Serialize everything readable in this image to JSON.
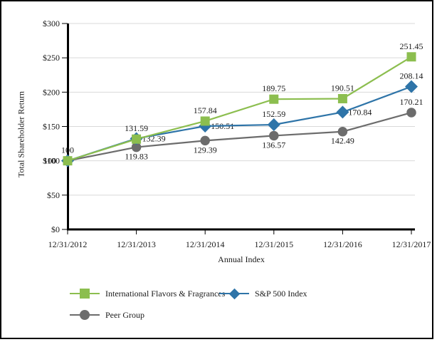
{
  "frame": {
    "background": "#ffffff",
    "border_color": "#000000"
  },
  "chart_data": {
    "type": "line",
    "title": "",
    "xlabel": "Annual Index",
    "ylabel": "Total Shareholder Return",
    "categories": [
      "12/31/2012",
      "12/31/2013",
      "12/31/2014",
      "12/31/2015",
      "12/31/2016",
      "12/31/2017"
    ],
    "ylim": [
      0,
      300
    ],
    "y_ticks": {
      "values": [
        0,
        50,
        100,
        150,
        200,
        250,
        300
      ],
      "labels": [
        "$0",
        "$50",
        "$100",
        "$150",
        "$200",
        "$250",
        "$300"
      ]
    },
    "grid": "horizontal",
    "grid_color": "#D9D9D9",
    "axis_color": "#000000",
    "text_color": "#1a1a1a",
    "legend_position": "bottom",
    "series": [
      {
        "name": "International Flavors & Fragrances",
        "marker": "square",
        "color": "#8CBE4F",
        "values": [
          100,
          131.59,
          157.84,
          189.75,
          190.51,
          251.45
        ],
        "labels": [
          "100",
          "131.59",
          "157.84",
          "189.75",
          "190.51",
          "251.45"
        ],
        "label_pos": [
          "above",
          "above",
          "above",
          "above",
          "above",
          "above"
        ]
      },
      {
        "name": "S&P 500 Index",
        "marker": "diamond",
        "color": "#2E74A8",
        "values": [
          100,
          132.39,
          150.51,
          152.59,
          170.84,
          208.14
        ],
        "labels": [
          "100",
          "132.39",
          "150.51",
          "152.59",
          "170.84",
          "208.14"
        ],
        "label_pos": [
          "left",
          "right",
          "right",
          "above",
          "right",
          "above"
        ]
      },
      {
        "name": "Peer Group",
        "marker": "circle",
        "color": "#6C6C6C",
        "values": [
          100,
          119.83,
          129.39,
          136.57,
          142.49,
          170.21
        ],
        "labels": [
          "100",
          "119.83",
          "129.39",
          "136.57",
          "142.49",
          "170.21"
        ],
        "label_pos": [
          null,
          "below",
          "below",
          "below",
          "below",
          "above"
        ]
      }
    ]
  }
}
